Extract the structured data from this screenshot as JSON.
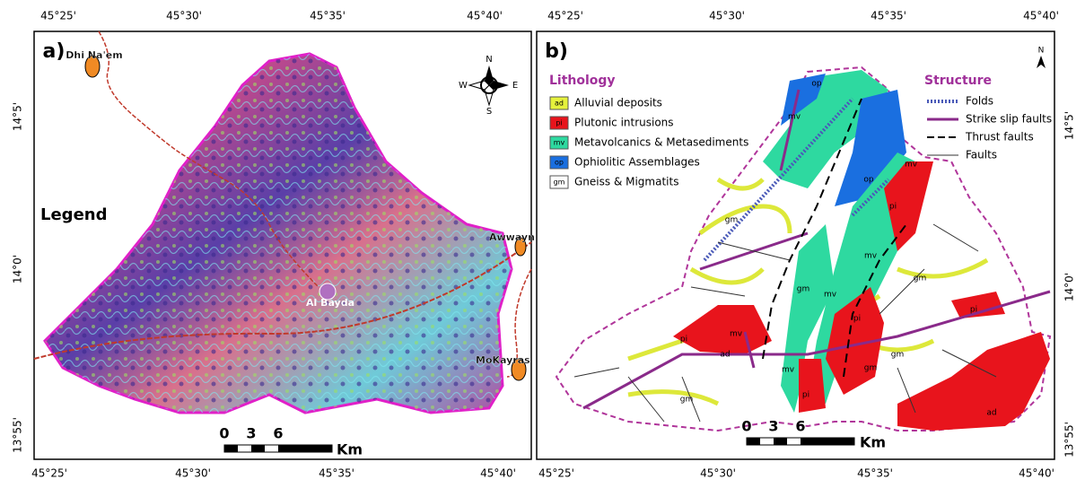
{
  "panel_a": {
    "label": "a)",
    "top_ticks": [
      "45°25'",
      "45°30'",
      "45°35'",
      "45°40'"
    ],
    "bottom_ticks": [
      "45°25'",
      "45°30'",
      "45°35'",
      "45°40'"
    ],
    "left_ticks": [
      "14°5'",
      "14°0'",
      "13°55'"
    ],
    "compass": {
      "n": "N",
      "e": "E",
      "s": "S",
      "w": "W"
    },
    "places": [
      "Dhi Na'em",
      "Awwayn",
      "Al Bayda",
      "MoKayras"
    ],
    "legend_heading": "Legend",
    "scale": {
      "ticks": [
        "0",
        "3",
        "6"
      ],
      "unit": "Km"
    }
  },
  "panel_b": {
    "label": "b)",
    "top_ticks": [
      "45°25'",
      "45°30'",
      "45°35'",
      "45°40'"
    ],
    "bottom_ticks": [
      "45°25'",
      "45°30'",
      "45°35'",
      "45°40'"
    ],
    "right_ticks": [
      "14°5'",
      "14°0'",
      "13°55'"
    ],
    "north": "N",
    "lithology": {
      "title": "Lithology",
      "items": [
        {
          "code": "ad",
          "label": "Alluvial deposits"
        },
        {
          "code": "pi",
          "label": "Plutonic intrusions"
        },
        {
          "code": "mv",
          "label": "Metavolcanics & Metasediments"
        },
        {
          "code": "op",
          "label": "Ophiolitic Assemblages"
        },
        {
          "code": "gm",
          "label": "Gneiss & Migmatits"
        }
      ]
    },
    "structure": {
      "title": "Structure",
      "items": [
        "Folds",
        "Strike slip faults",
        "Thrust faults",
        "Faults"
      ]
    },
    "map_labels": [
      "op",
      "mv",
      "op",
      "gm",
      "mv",
      "pi",
      "mv",
      "gm",
      "mv",
      "gm",
      "pi",
      "pi",
      "mv",
      "ad",
      "gm",
      "mv",
      "pi",
      "gm",
      "pi",
      "ad",
      "gm"
    ],
    "scale": {
      "ticks": [
        "0",
        "3",
        "6"
      ],
      "unit": "Km"
    }
  }
}
